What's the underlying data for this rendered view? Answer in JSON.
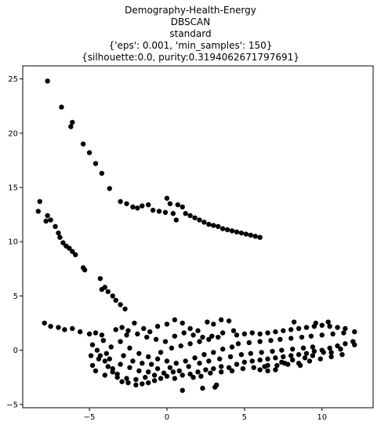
{
  "chart_data": {
    "type": "scatter",
    "title_lines": [
      "Demography-Health-Energy",
      "DBSCAN",
      "standard",
      "{'eps': 0.001, 'min_samples': 150}",
      "{silhouette:0.0, purity:0.3194062671797691}"
    ],
    "xlabel": "",
    "ylabel": "",
    "xlim": [
      -9.3,
      13.3
    ],
    "ylim": [
      -5.3,
      26.2
    ],
    "xticks": [
      -5,
      0,
      5,
      10
    ],
    "yticks": [
      -5,
      0,
      5,
      10,
      15,
      20,
      25
    ],
    "grid": false,
    "marker_color": "#000000",
    "series": [
      {
        "points": [
          [
            -7.7,
            24.8
          ],
          [
            -6.8,
            22.4
          ],
          [
            -6.2,
            20.6
          ],
          [
            -6.1,
            21.0
          ],
          [
            -5.4,
            19.0
          ],
          [
            -5.0,
            18.2
          ],
          [
            -4.6,
            17.2
          ],
          [
            -4.2,
            16.3
          ],
          [
            -3.7,
            14.9
          ],
          [
            -3.0,
            13.7
          ],
          [
            -2.6,
            13.5
          ],
          [
            -2.2,
            13.2
          ],
          [
            -1.9,
            13.1
          ],
          [
            -1.6,
            13.3
          ],
          [
            -1.2,
            13.4
          ],
          [
            -0.9,
            12.9
          ],
          [
            -0.5,
            12.8
          ],
          [
            -0.1,
            12.7
          ],
          [
            0.0,
            14.0
          ],
          [
            0.2,
            13.5
          ],
          [
            0.4,
            12.6
          ],
          [
            0.6,
            12.0
          ],
          [
            0.7,
            13.4
          ],
          [
            1.0,
            13.2
          ],
          [
            1.2,
            12.6
          ],
          [
            1.5,
            12.4
          ],
          [
            1.8,
            12.2
          ],
          [
            2.1,
            12.0
          ],
          [
            2.4,
            11.8
          ],
          [
            2.7,
            11.6
          ],
          [
            3.0,
            11.5
          ],
          [
            3.3,
            11.4
          ],
          [
            3.6,
            11.2
          ],
          [
            3.9,
            11.1
          ],
          [
            4.2,
            11.0
          ],
          [
            4.5,
            10.9
          ],
          [
            4.8,
            10.8
          ],
          [
            5.1,
            10.7
          ],
          [
            5.4,
            10.6
          ],
          [
            5.7,
            10.5
          ],
          [
            6.0,
            10.4
          ],
          [
            -8.3,
            12.8
          ],
          [
            -8.2,
            13.7
          ],
          [
            -7.8,
            11.9
          ],
          [
            -7.7,
            12.4
          ],
          [
            -7.5,
            12.0
          ],
          [
            -7.2,
            11.4
          ],
          [
            -7.0,
            10.8
          ],
          [
            -6.9,
            10.4
          ],
          [
            -6.7,
            9.9
          ],
          [
            -6.5,
            9.6
          ],
          [
            -6.3,
            9.4
          ],
          [
            -6.1,
            9.1
          ],
          [
            -5.9,
            8.8
          ],
          [
            -5.4,
            7.6
          ],
          [
            -5.3,
            7.4
          ],
          [
            -4.3,
            6.6
          ],
          [
            -4.2,
            5.6
          ],
          [
            -4.0,
            5.8
          ],
          [
            -3.8,
            5.4
          ],
          [
            -3.5,
            5.0
          ],
          [
            -3.3,
            4.6
          ],
          [
            -3.0,
            4.2
          ],
          [
            -2.7,
            3.8
          ],
          [
            -7.9,
            2.5
          ],
          [
            -7.5,
            2.2
          ],
          [
            -7.0,
            2.1
          ],
          [
            -6.6,
            1.9
          ],
          [
            -6.1,
            2.0
          ],
          [
            -5.6,
            1.7
          ],
          [
            -5.0,
            1.5
          ],
          [
            -4.6,
            1.6
          ],
          [
            -4.2,
            1.4
          ],
          [
            -4.8,
            0.5
          ],
          [
            -4.5,
            0.0
          ],
          [
            -4.3,
            -0.5
          ],
          [
            -4.0,
            -1.0
          ],
          [
            -3.8,
            -1.5
          ],
          [
            -3.5,
            -2.0
          ],
          [
            -3.2,
            -2.5
          ],
          [
            -2.9,
            -2.9
          ],
          [
            -2.5,
            -3.0
          ],
          [
            -2.0,
            -3.2
          ],
          [
            -1.6,
            -3.1
          ],
          [
            -1.2,
            -3.0
          ],
          [
            -0.8,
            -2.8
          ],
          [
            -0.4,
            -2.6
          ],
          [
            0.0,
            -2.4
          ],
          [
            0.5,
            -2.6
          ],
          [
            1.0,
            -3.7
          ],
          [
            2.3,
            -3.5
          ],
          [
            3.1,
            -3.4
          ],
          [
            3.2,
            -3.2
          ],
          [
            1.5,
            -2.2
          ],
          [
            2.0,
            -2.0
          ],
          [
            2.5,
            -1.8
          ],
          [
            3.0,
            -1.7
          ],
          [
            3.5,
            -1.5
          ],
          [
            4.0,
            -1.6
          ],
          [
            4.5,
            -1.3
          ],
          [
            5.0,
            -1.1
          ],
          [
            5.5,
            -1.0
          ],
          [
            6.0,
            -0.9
          ],
          [
            6.5,
            -0.8
          ],
          [
            7.0,
            -0.7
          ],
          [
            7.5,
            -0.6
          ],
          [
            8.0,
            -0.5
          ],
          [
            8.5,
            -0.4
          ],
          [
            9.0,
            -0.3
          ],
          [
            9.5,
            -0.1
          ],
          [
            10.0,
            0.0
          ],
          [
            10.5,
            0.2
          ],
          [
            11.0,
            0.4
          ],
          [
            11.5,
            0.6
          ],
          [
            12.0,
            0.8
          ],
          [
            12.1,
            0.5
          ],
          [
            11.2,
            0.1
          ],
          [
            10.6,
            -0.2
          ],
          [
            10.1,
            -0.2
          ],
          [
            9.4,
            -0.5
          ],
          [
            8.9,
            -0.7
          ],
          [
            8.1,
            -0.9
          ],
          [
            7.4,
            -1.1
          ],
          [
            6.5,
            -1.4
          ],
          [
            6.0,
            -1.8
          ],
          [
            6.5,
            -1.9
          ],
          [
            7.0,
            -1.8
          ],
          [
            7.6,
            -1.2
          ],
          [
            8.6,
            -1.4
          ],
          [
            -1.5,
            2.0
          ],
          [
            -1.1,
            1.7
          ],
          [
            -0.6,
            2.2
          ],
          [
            0.0,
            2.4
          ],
          [
            0.5,
            2.8
          ],
          [
            1.0,
            2.5
          ],
          [
            1.5,
            2.0
          ],
          [
            2.0,
            1.8
          ],
          [
            2.6,
            2.6
          ],
          [
            3.0,
            2.4
          ],
          [
            3.5,
            2.8
          ],
          [
            4.0,
            2.7
          ],
          [
            4.5,
            1.4
          ],
          [
            5.0,
            1.5
          ],
          [
            5.5,
            1.6
          ],
          [
            6.0,
            1.5
          ],
          [
            6.5,
            1.6
          ],
          [
            7.0,
            1.7
          ],
          [
            7.5,
            1.8
          ],
          [
            8.0,
            1.9
          ],
          [
            8.5,
            2.0
          ],
          [
            9.0,
            2.1
          ],
          [
            9.5,
            2.2
          ],
          [
            10.0,
            2.3
          ],
          [
            10.5,
            2.2
          ],
          [
            11.0,
            2.1
          ],
          [
            11.5,
            2.0
          ],
          [
            8.2,
            2.6
          ],
          [
            9.6,
            2.5
          ],
          [
            10.4,
            2.6
          ],
          [
            -2.1,
            2.5
          ],
          [
            -2.6,
            1.4
          ],
          [
            -3.0,
            0.8
          ],
          [
            -2.4,
            0.2
          ],
          [
            -1.8,
            -0.3
          ],
          [
            -1.2,
            -0.6
          ],
          [
            -0.6,
            -0.8
          ],
          [
            0.0,
            -1.0
          ],
          [
            0.6,
            -1.2
          ],
          [
            1.2,
            -1.0
          ],
          [
            1.8,
            -0.7
          ],
          [
            2.4,
            -0.4
          ],
          [
            3.0,
            -0.2
          ],
          [
            3.6,
            0.1
          ],
          [
            4.2,
            0.3
          ],
          [
            -3.6,
            0.3
          ],
          [
            -3.9,
            -0.3
          ],
          [
            -4.4,
            -0.8
          ],
          [
            -4.8,
            -1.4
          ],
          [
            -4.9,
            -0.5
          ],
          [
            -4.6,
            -1.9
          ],
          [
            -4.0,
            -2.3
          ],
          [
            -3.5,
            -1.7
          ],
          [
            -3.0,
            -1.3
          ],
          [
            -2.4,
            -1.6
          ],
          [
            -1.8,
            -1.9
          ],
          [
            -1.2,
            -2.0
          ],
          [
            -0.6,
            -1.7
          ],
          [
            0.2,
            -1.6
          ],
          [
            0.8,
            -1.9
          ],
          [
            1.4,
            -1.5
          ],
          [
            2.1,
            -1.2
          ],
          [
            2.7,
            -1.0
          ],
          [
            3.4,
            -0.8
          ],
          [
            4.1,
            -0.6
          ],
          [
            4.8,
            -0.4
          ],
          [
            5.4,
            -0.3
          ],
          [
            6.1,
            -0.2
          ],
          [
            6.8,
            -0.1
          ],
          [
            7.4,
            0.0
          ],
          [
            8.1,
            0.1
          ],
          [
            8.8,
            0.2
          ],
          [
            9.4,
            0.3
          ],
          [
            -2.8,
            -0.5
          ],
          [
            -2.2,
            -1.0
          ],
          [
            -1.6,
            -1.2
          ],
          [
            -1.0,
            -1.3
          ],
          [
            -0.4,
            -0.2
          ],
          [
            0.3,
            0.2
          ],
          [
            0.9,
            0.4
          ],
          [
            1.5,
            0.6
          ],
          [
            2.1,
            0.8
          ],
          [
            2.7,
            1.0
          ],
          [
            3.3,
            1.2
          ],
          [
            -3.3,
            1.9
          ],
          [
            -2.9,
            2.1
          ],
          [
            -2.5,
            1.8
          ],
          [
            -1.9,
            1.5
          ],
          [
            -1.3,
            1.2
          ],
          [
            -0.7,
            1.0
          ],
          [
            -0.1,
            0.8
          ],
          [
            0.5,
            1.3
          ],
          [
            1.1,
            1.6
          ],
          [
            1.7,
            1.4
          ],
          [
            2.3,
            1.2
          ],
          [
            2.9,
            1.3
          ],
          [
            3.6,
            1.6
          ],
          [
            4.3,
            1.8
          ],
          [
            -4.1,
            0.9
          ],
          [
            -3.7,
            -0.8
          ],
          [
            -3.2,
            -2.2
          ],
          [
            -2.6,
            -2.6
          ],
          [
            -2.0,
            -2.7
          ],
          [
            -1.4,
            -2.5
          ],
          [
            -0.8,
            -2.3
          ],
          [
            -0.2,
            -2.1
          ],
          [
            0.4,
            -2.0
          ],
          [
            1.0,
            -2.3
          ],
          [
            1.7,
            -2.5
          ],
          [
            2.2,
            -2.4
          ],
          [
            2.8,
            -2.1
          ],
          [
            3.5,
            -2.0
          ],
          [
            4.2,
            -1.9
          ],
          [
            4.9,
            -1.7
          ],
          [
            5.6,
            -1.6
          ],
          [
            6.3,
            -1.5
          ],
          [
            7.1,
            -1.4
          ],
          [
            7.8,
            -1.3
          ],
          [
            8.5,
            -1.2
          ],
          [
            9.2,
            -1.0
          ],
          [
            9.9,
            -0.8
          ],
          [
            10.6,
            -0.6
          ],
          [
            11.3,
            -0.4
          ],
          [
            4.6,
            0.6
          ],
          [
            5.3,
            0.7
          ],
          [
            6.0,
            0.8
          ],
          [
            6.7,
            0.9
          ],
          [
            7.3,
            1.0
          ],
          [
            8.0,
            1.1
          ],
          [
            8.7,
            1.2
          ],
          [
            9.3,
            1.3
          ],
          [
            10.0,
            1.4
          ],
          [
            10.7,
            1.5
          ],
          [
            11.4,
            1.6
          ],
          [
            12.1,
            1.7
          ]
        ]
      }
    ]
  }
}
